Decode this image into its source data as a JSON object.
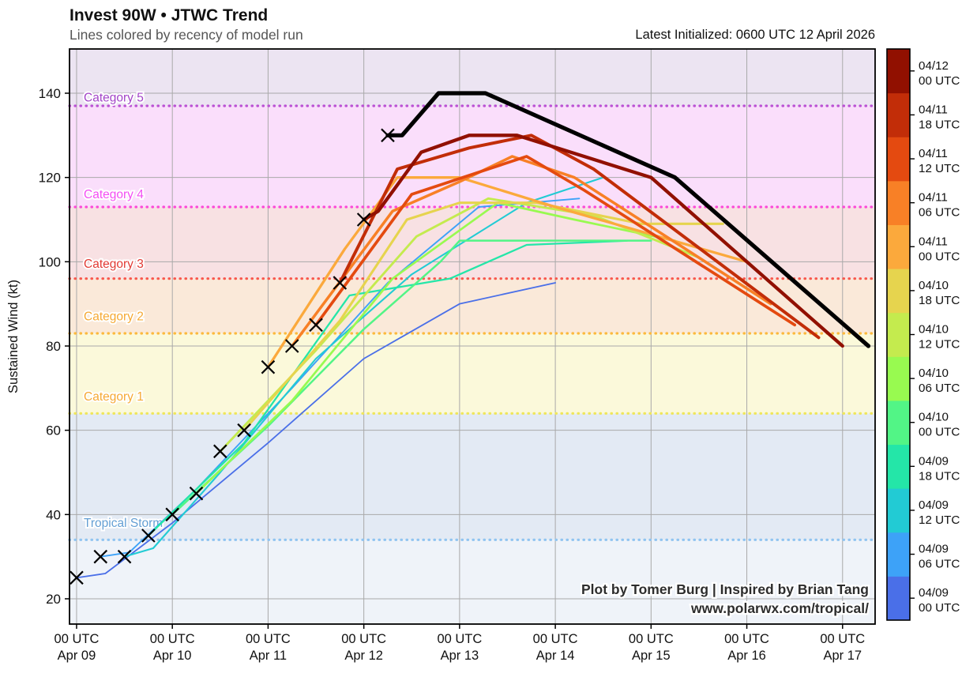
{
  "header": {
    "title": "Invest 90W • JTWC Trend",
    "subtitle": "Lines colored by recency of model run",
    "latest_initialized": "Latest Initialized: 0600 UTC 12 April 2026"
  },
  "watermark": {
    "line1": "Plot by Tomer Burg | Inspired by Brian Tang",
    "line2": "www.polarwx.com/tropical/"
  },
  "chart_data": {
    "type": "line",
    "title": "Invest 90W • JTWC Trend",
    "subtitle": "Lines colored by recency of model run",
    "ylabel": "Sustained Wind (kt)",
    "yticks": [
      20,
      40,
      60,
      80,
      100,
      120,
      140
    ],
    "ylim": [
      14,
      150.5
    ],
    "xlim_days": [
      -0.074,
      8.34
    ],
    "x_ticks": [
      {
        "day": 0,
        "utc": "00 UTC",
        "date": "Apr 09"
      },
      {
        "day": 1,
        "utc": "00 UTC",
        "date": "Apr 10"
      },
      {
        "day": 2,
        "utc": "00 UTC",
        "date": "Apr 11"
      },
      {
        "day": 3,
        "utc": "00 UTC",
        "date": "Apr 12"
      },
      {
        "day": 4,
        "utc": "00 UTC",
        "date": "Apr 13"
      },
      {
        "day": 5,
        "utc": "00 UTC",
        "date": "Apr 14"
      },
      {
        "day": 6,
        "utc": "00 UTC",
        "date": "Apr 15"
      },
      {
        "day": 7,
        "utc": "00 UTC",
        "date": "Apr 16"
      },
      {
        "day": 8,
        "utc": "00 UTC",
        "date": "Apr 17"
      }
    ],
    "grid_color": "#a9a9a9",
    "bands": [
      {
        "name": "below-tropical-storm",
        "label": "",
        "range": [
          14,
          34
        ],
        "fill": "#eff3f9"
      },
      {
        "name": "tropical-storm",
        "label": "Tropical Storm",
        "range": [
          34,
          64
        ],
        "fill": "#e3eaf4",
        "label_color": "#649fd4",
        "label_value": 38,
        "threshold_color": "#90c4f0"
      },
      {
        "name": "category-1",
        "label": "Category 1",
        "range": [
          64,
          83
        ],
        "fill": "#fbf9da",
        "label_color": "#f6a933",
        "label_value": 68,
        "threshold_color": "#efe65a"
      },
      {
        "name": "category-2",
        "label": "Category 2",
        "range": [
          83,
          96
        ],
        "fill": "#fae9d9",
        "label_color": "#f6a933",
        "label_value": 87,
        "threshold_color": "#fcb93e"
      },
      {
        "name": "category-3",
        "label": "Category 3",
        "range": [
          96,
          113
        ],
        "fill": "#f8e1e3",
        "label_color": "#e23b34",
        "label_value": 99.5,
        "threshold_color": "#f8574d"
      },
      {
        "name": "category-4",
        "label": "Category 4",
        "range": [
          113,
          137
        ],
        "fill": "#fadefb",
        "label_color": "#f44ef4",
        "label_value": 116,
        "threshold_color": "#fb4ad8"
      },
      {
        "name": "category-5",
        "label": "Category 5",
        "range": [
          137,
          150.5
        ],
        "fill": "#ece4f2",
        "label_color": "#a344c8",
        "label_value": 139,
        "threshold_color": "#bb52d4"
      }
    ],
    "obs_markers": {
      "symbol": "x",
      "color": "#000000",
      "points": [
        [
          0,
          25
        ],
        [
          0.25,
          30
        ],
        [
          0.5,
          30
        ],
        [
          0.75,
          35
        ],
        [
          1,
          40
        ],
        [
          1.25,
          45
        ],
        [
          1.5,
          55
        ],
        [
          1.75,
          60
        ],
        [
          2,
          75
        ],
        [
          2.25,
          80
        ],
        [
          2.5,
          85
        ],
        [
          2.75,
          95
        ],
        [
          3,
          110
        ],
        [
          3.25,
          130
        ]
      ]
    },
    "model_runs": [
      {
        "date": "04/09",
        "time": "00 UTC",
        "color": "#4a6fe8",
        "width": 1.8,
        "points": [
          [
            0,
            25
          ],
          [
            0.3,
            26
          ],
          [
            1,
            38
          ],
          [
            2,
            57
          ],
          [
            3,
            77
          ],
          [
            4,
            90
          ],
          [
            5,
            95
          ]
        ]
      },
      {
        "date": "04/09",
        "time": "06 UTC",
        "color": "#3da2f8",
        "width": 1.9,
        "points": [
          [
            0.25,
            30
          ],
          [
            0.55,
            31
          ],
          [
            1.25,
            46
          ],
          [
            2.25,
            70
          ],
          [
            3.25,
            95
          ],
          [
            4.2,
            113
          ],
          [
            5.25,
            115
          ]
        ]
      },
      {
        "date": "04/09",
        "time": "12 UTC",
        "color": "#22cbd4",
        "width": 2.1,
        "points": [
          [
            0.5,
            30
          ],
          [
            0.8,
            32
          ],
          [
            1.5,
            50
          ],
          [
            2.5,
            77
          ],
          [
            3.5,
            97
          ],
          [
            4.7,
            114
          ],
          [
            5.5,
            120
          ]
        ]
      },
      {
        "date": "04/09",
        "time": "18 UTC",
        "color": "#24e6a8",
        "width": 2.3,
        "points": [
          [
            0.75,
            35
          ],
          [
            1.75,
            57
          ],
          [
            2.85,
            92
          ],
          [
            3.9,
            96
          ],
          [
            4.7,
            104
          ],
          [
            5.75,
            105
          ]
        ]
      },
      {
        "date": "04/10",
        "time": "00 UTC",
        "color": "#52f586",
        "width": 2.5,
        "points": [
          [
            1,
            40
          ],
          [
            2,
            61
          ],
          [
            3,
            84
          ],
          [
            3.8,
            100
          ],
          [
            4,
            105
          ],
          [
            6,
            105
          ]
        ]
      },
      {
        "date": "04/10",
        "time": "06 UTC",
        "color": "#98fa50",
        "width": 2.7,
        "points": [
          [
            1.25,
            45
          ],
          [
            2.25,
            67
          ],
          [
            3.3,
            96
          ],
          [
            4.4,
            114
          ],
          [
            5.2,
            110
          ],
          [
            6.25,
            105
          ]
        ]
      },
      {
        "date": "04/10",
        "time": "12 UTC",
        "color": "#c4eb4e",
        "width": 2.9,
        "points": [
          [
            1.5,
            55
          ],
          [
            2.5,
            79
          ],
          [
            3.55,
            106
          ],
          [
            4.3,
            115
          ],
          [
            5.4,
            111
          ],
          [
            6.5,
            101
          ]
        ]
      },
      {
        "date": "04/10",
        "time": "18 UTC",
        "color": "#e6d44e",
        "width": 3.1,
        "points": [
          [
            1.75,
            60
          ],
          [
            2.75,
            86
          ],
          [
            3.45,
            110
          ],
          [
            4,
            114
          ],
          [
            4.8,
            114
          ],
          [
            5.9,
            109
          ],
          [
            6.75,
            109
          ]
        ]
      },
      {
        "date": "04/11",
        "time": "00 UTC",
        "color": "#fba93c",
        "width": 3.3,
        "points": [
          [
            2,
            75
          ],
          [
            2.8,
            103
          ],
          [
            3.35,
            120
          ],
          [
            4,
            120
          ],
          [
            5,
            113
          ],
          [
            7,
            100
          ]
        ]
      },
      {
        "date": "04/11",
        "time": "06 UTC",
        "color": "#f88026",
        "width": 3.5,
        "points": [
          [
            2.25,
            80
          ],
          [
            3.3,
            112
          ],
          [
            4,
            119
          ],
          [
            4.55,
            125
          ],
          [
            5.2,
            120
          ],
          [
            7.25,
            90
          ]
        ]
      },
      {
        "date": "04/11",
        "time": "12 UTC",
        "color": "#e44a10",
        "width": 3.7,
        "points": [
          [
            2.5,
            85
          ],
          [
            3.5,
            116
          ],
          [
            4.3,
            122
          ],
          [
            4.7,
            125
          ],
          [
            5.3,
            117
          ],
          [
            7.5,
            85
          ]
        ]
      },
      {
        "date": "04/11",
        "time": "18 UTC",
        "color": "#c22d08",
        "width": 4,
        "points": [
          [
            2.75,
            95
          ],
          [
            3.35,
            122
          ],
          [
            4.1,
            127
          ],
          [
            4.75,
            130
          ],
          [
            5.4,
            122
          ],
          [
            7.75,
            82
          ]
        ]
      },
      {
        "date": "04/12",
        "time": "00 UTC",
        "color": "#911000",
        "width": 4.3,
        "points": [
          [
            3,
            110
          ],
          [
            3.15,
            112
          ],
          [
            3.6,
            126
          ],
          [
            4.1,
            130
          ],
          [
            4.6,
            130
          ],
          [
            6,
            120
          ],
          [
            8,
            80
          ]
        ]
      }
    ],
    "official_line": {
      "color": "#000000",
      "width": 5.2,
      "points": [
        [
          3.25,
          130
        ],
        [
          3.4,
          130
        ],
        [
          3.78,
          140
        ],
        [
          4.27,
          140
        ],
        [
          6.25,
          120
        ],
        [
          8.27,
          80
        ]
      ]
    },
    "colorbar": {
      "note": "entries are model_runs bottom-to-top"
    }
  }
}
